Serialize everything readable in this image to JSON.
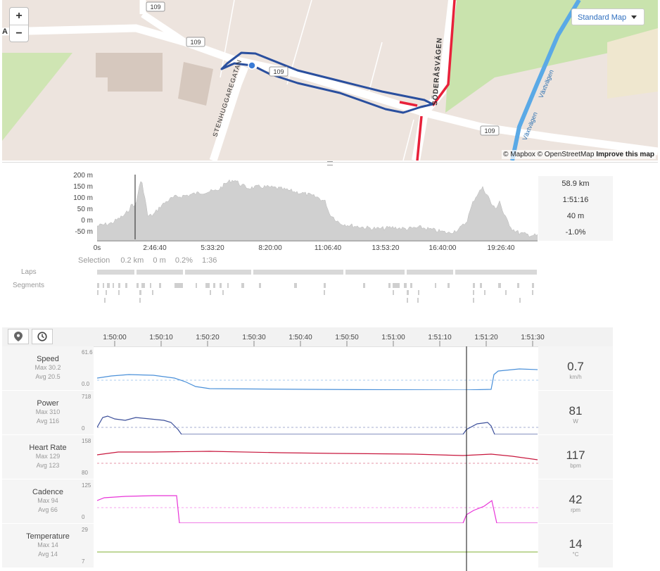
{
  "map": {
    "zoom_in": "+",
    "zoom_out": "−",
    "map_type": "Standard Map",
    "attribution": "© Mapbox © OpenStreetMap",
    "improve_link": "Improve this map",
    "roads": {
      "r109": "109",
      "stenhuggaregatan": "STENHUGGAREGATAN",
      "soderasvagen": "SÖDERÅSVÄGEN",
      "vaxtvagen": "Växtvägen",
      "corner_label": "A"
    },
    "colors": {
      "route": "#2a4f9e",
      "highlight": "#e8213a",
      "water": "#5aa9e6",
      "park": "#c9e3ad"
    }
  },
  "elevation": {
    "y_ticks": [
      "200 m",
      "150 m",
      "100 m",
      "50 m",
      "0 m",
      "-50 m"
    ],
    "x_ticks": [
      "0s",
      "2:46:40",
      "5:33:20",
      "8:20:00",
      "11:06:40",
      "13:53:20",
      "16:40:00",
      "19:26:40"
    ],
    "stats": [
      "58.9 km",
      "1:51:16",
      "40 m",
      "-1.0%"
    ],
    "selection_label": "Selection",
    "selection_values": [
      "0.2 km",
      "0 m",
      "0.2%",
      "1:36"
    ],
    "laps_label": "Laps",
    "segments_label": "Segments"
  },
  "detail": {
    "map_pin_icon": "location-pin-icon",
    "clock_icon": "clock-icon",
    "time_ticks": [
      "1:50:00",
      "1:50:10",
      "1:50:20",
      "1:50:30",
      "1:50:40",
      "1:50:50",
      "1:51:00",
      "1:51:10",
      "1:51:20",
      "1:51:30"
    ],
    "rows": [
      {
        "name": "Speed",
        "max": "Max 30.2",
        "avg": "Avg 20.5",
        "ymax": "61.6",
        "ymin": "0.0",
        "value": "0.7",
        "unit": "km/h",
        "color": "#4a90d9"
      },
      {
        "name": "Power",
        "max": "Max 310",
        "avg": "Avg 116",
        "ymax": "718",
        "ymin": "0",
        "value": "81",
        "unit": "W",
        "color": "#3c4f9a"
      },
      {
        "name": "Heart Rate",
        "max": "Max 129",
        "avg": "Avg 123",
        "ymax": "158",
        "ymin": "80",
        "value": "117",
        "unit": "bpm",
        "color": "#c8173d"
      },
      {
        "name": "Cadence",
        "max": "Max 94",
        "avg": "Avg 66",
        "ymax": "125",
        "ymin": "0",
        "value": "42",
        "unit": "rpm",
        "color": "#e834d8"
      },
      {
        "name": "Temperature",
        "max": "Max 14",
        "avg": "Avg 14",
        "ymax": "29",
        "ymin": "7",
        "value": "14",
        "unit": "°C",
        "color": "#9ac05c"
      }
    ]
  }
}
